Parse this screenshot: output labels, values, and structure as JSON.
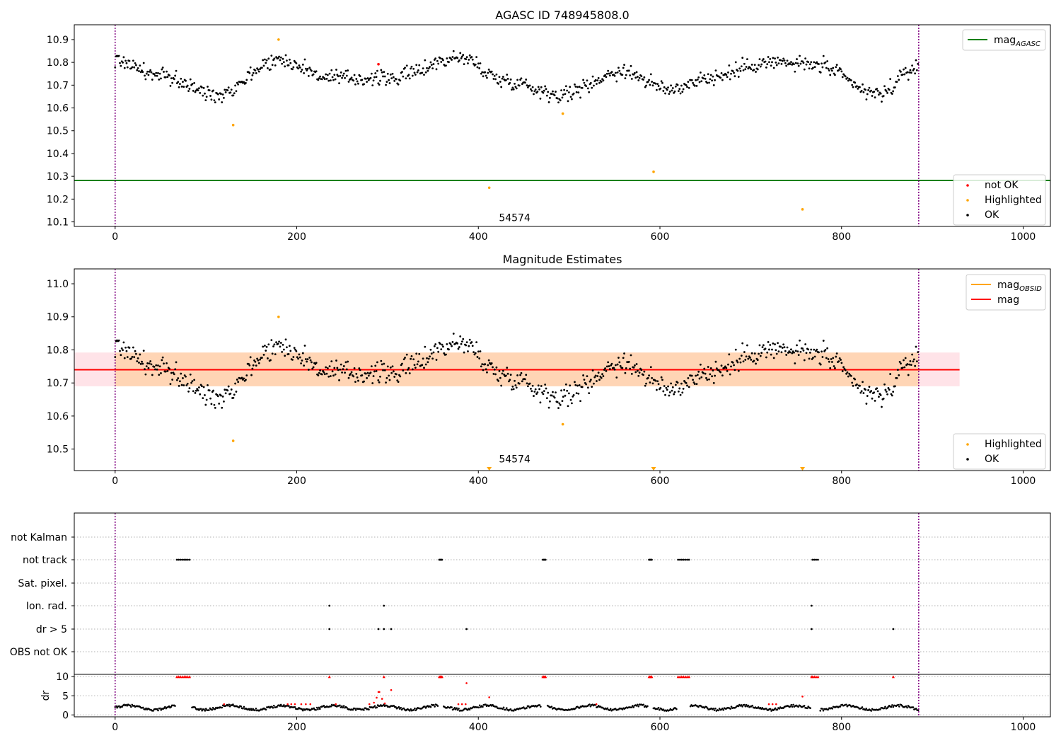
{
  "chart_data": [
    {
      "type": "scatter",
      "title": "AGASC ID 748945808.0",
      "xlim": [
        -45,
        1030
      ],
      "ylim": [
        10.08,
        10.965
      ],
      "x_ticks": [
        0,
        200,
        400,
        600,
        800,
        1000
      ],
      "y_ticks": [
        10.1,
        10.2,
        10.3,
        10.4,
        10.5,
        10.6,
        10.7,
        10.8,
        10.9
      ],
      "vlines": [
        0,
        885
      ],
      "vline_color": "#800080",
      "reference_lines": [
        {
          "name": "mag",
          "subscript": "AGASC",
          "y": 10.282,
          "color": "#008000"
        }
      ],
      "annotation": {
        "text": "54574",
        "x": 440,
        "y": 10.11
      },
      "legends": [
        {
          "placement": "upper-right",
          "entries": [
            {
              "label": "mag",
              "sub": "AGASC",
              "kind": "line",
              "color": "#008000"
            }
          ]
        },
        {
          "placement": "lower-right",
          "entries": [
            {
              "label": "not OK",
              "kind": "dot",
              "color": "#ff0000"
            },
            {
              "label": "Highlighted",
              "kind": "dot",
              "color": "#ffa500"
            },
            {
              "label": "OK",
              "kind": "dot",
              "color": "#000000"
            }
          ]
        }
      ],
      "series_ok": {
        "name": "OK",
        "color": "#000000",
        "x_start": 0,
        "x_end": 885,
        "knots_x": [
          0,
          50,
          110,
          180,
          240,
          300,
          380,
          430,
          490,
          560,
          610,
          650,
          720,
          770,
          840,
          885
        ],
        "knots_y": [
          10.81,
          10.74,
          10.66,
          10.81,
          10.73,
          10.73,
          10.82,
          10.72,
          10.66,
          10.76,
          10.68,
          10.73,
          10.8,
          10.79,
          10.66,
          10.78
        ],
        "jitter": 0.028
      },
      "series_highlighted": {
        "name": "Highlighted",
        "color": "#ffa500",
        "x": [
          130,
          180,
          412,
          493,
          593,
          757
        ],
        "y": [
          10.525,
          10.9,
          10.25,
          10.575,
          10.32,
          10.155
        ]
      },
      "series_not_ok": {
        "name": "not OK",
        "color": "#ff0000",
        "x": [
          290
        ],
        "y": [
          10.792
        ]
      }
    },
    {
      "type": "scatter",
      "title": "Magnitude Estimates",
      "xlim": [
        -45,
        1030
      ],
      "ylim": [
        10.435,
        11.045
      ],
      "x_ticks": [
        0,
        200,
        400,
        600,
        800,
        1000
      ],
      "y_ticks": [
        10.5,
        10.6,
        10.7,
        10.8,
        10.9,
        11.0
      ],
      "vlines": [
        0,
        885
      ],
      "vline_color": "#800080",
      "mag_line": {
        "name": "mag",
        "y": 10.74,
        "color": "#ff0000",
        "band": [
          10.69,
          10.792
        ],
        "band_color": "#ffc0cb",
        "x_end": 930
      },
      "obsid_segment": {
        "name": "mag",
        "subscript": "OBSID",
        "x_start": 0,
        "x_end": 885,
        "y": 10.74,
        "band": [
          10.69,
          10.792
        ],
        "color": "#ffa500"
      },
      "annotation": {
        "text": "54574",
        "x": 440,
        "y": 10.46
      },
      "below_range_markers": {
        "x": [
          412,
          593,
          757
        ],
        "color": "#ffa500"
      },
      "legends": [
        {
          "placement": "upper-right",
          "entries": [
            {
              "label": "mag",
              "sub": "OBSID",
              "kind": "line",
              "color": "#ffa500"
            },
            {
              "label": "mag",
              "kind": "line",
              "color": "#ff0000"
            }
          ]
        },
        {
          "placement": "lower-right",
          "entries": [
            {
              "label": "Highlighted",
              "kind": "dot",
              "color": "#ffa500"
            },
            {
              "label": "OK",
              "kind": "dot",
              "color": "#000000"
            }
          ]
        }
      ],
      "series_ok": {
        "name": "OK",
        "color": "#000000",
        "x_start": 0,
        "x_end": 885,
        "knots_x": [
          0,
          50,
          110,
          180,
          240,
          300,
          380,
          430,
          490,
          560,
          610,
          650,
          720,
          770,
          840,
          885
        ],
        "knots_y": [
          10.81,
          10.74,
          10.66,
          10.81,
          10.73,
          10.73,
          10.82,
          10.72,
          10.66,
          10.76,
          10.68,
          10.73,
          10.8,
          10.79,
          10.66,
          10.78
        ],
        "jitter": 0.028
      },
      "series_highlighted": {
        "name": "Highlighted",
        "color": "#ffa500",
        "x": [
          130,
          180,
          493
        ],
        "y": [
          10.525,
          10.9,
          10.575
        ]
      }
    },
    {
      "type": "scatter",
      "title": "",
      "xlim": [
        -45,
        1030
      ],
      "x_ticks": [
        0,
        200,
        400,
        600,
        800,
        1000
      ],
      "vlines": [
        0,
        885
      ],
      "vline_color": "#800080",
      "flag_rows": [
        "not Kalman",
        "not track",
        "Sat. pixel.",
        "Ion. rad.",
        "dr > 5",
        "OBS not OK"
      ],
      "flags": {
        "not Kalman": [],
        "not track": [
          68,
          70,
          72,
          74,
          76,
          78,
          80,
          82,
          357,
          358,
          359,
          360,
          471,
          472,
          473,
          474,
          588,
          589,
          590,
          591,
          620,
          622,
          624,
          626,
          628,
          630,
          632,
          768,
          770,
          772,
          774
        ],
        "Sat. pixel.": [],
        "Ion. rad.": [
          236,
          296,
          767
        ],
        "dr > 5": [
          236,
          290,
          296,
          304,
          387,
          767,
          857
        ],
        "OBS not OK": []
      },
      "dr": {
        "ylabel": "dr",
        "yticks": [
          0,
          5,
          10
        ],
        "ylim": [
          -0.5,
          10.6
        ],
        "baseline": 1.9,
        "clip_value": 10,
        "spike_x": [
          290,
          304,
          387,
          412,
          757
        ],
        "spike_y": [
          6,
          6.5,
          8.3,
          4.6,
          4.8
        ],
        "bump_x": [
          285,
          288,
          291,
          294,
          297
        ],
        "bump_y": [
          3.2,
          4.5,
          6,
          4.2,
          3
        ],
        "red_x": [
          120,
          190,
          194,
          198,
          205,
          210,
          215,
          243,
          280,
          378,
          382,
          386,
          530,
          720,
          724,
          728
        ]
      }
    }
  ]
}
